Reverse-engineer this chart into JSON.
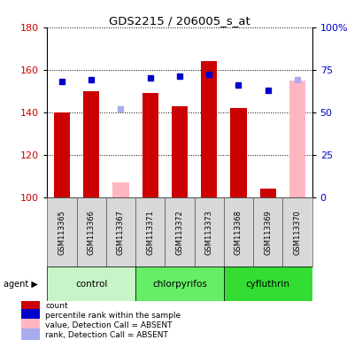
{
  "title": "GDS2215 / 206005_s_at",
  "samples": [
    "GSM113365",
    "GSM113366",
    "GSM113367",
    "GSM113371",
    "GSM113372",
    "GSM113373",
    "GSM113368",
    "GSM113369",
    "GSM113370"
  ],
  "groups": [
    {
      "label": "control",
      "indices": [
        0,
        1,
        2
      ]
    },
    {
      "label": "chlorpyrifos",
      "indices": [
        3,
        4,
        5
      ]
    },
    {
      "label": "cyfluthrin",
      "indices": [
        6,
        7,
        8
      ]
    }
  ],
  "group_colors": [
    "#c8f5c8",
    "#66ee66",
    "#33dd33"
  ],
  "bar_values": [
    140,
    150,
    null,
    149,
    143,
    164,
    142,
    104,
    null
  ],
  "bar_absent_values": [
    null,
    null,
    107,
    null,
    null,
    null,
    null,
    null,
    155
  ],
  "rank_values": [
    68,
    69,
    null,
    70,
    71,
    72,
    66,
    63,
    null
  ],
  "rank_absent_values": [
    null,
    null,
    52,
    null,
    null,
    null,
    null,
    null,
    69
  ],
  "bar_color": "#cc0000",
  "bar_absent_color": "#ffb6c1",
  "rank_color": "#0000cc",
  "rank_absent_color": "#aaaaee",
  "ylim_left": [
    100,
    180
  ],
  "ylim_right": [
    0,
    100
  ],
  "yticks_left": [
    100,
    120,
    140,
    160,
    180
  ],
  "yticks_right": [
    0,
    25,
    50,
    75,
    100
  ],
  "ytick_labels_right": [
    "0",
    "25",
    "50",
    "75",
    "100%"
  ],
  "bar_width": 0.55,
  "legend_labels": [
    "count",
    "percentile rank within the sample",
    "value, Detection Call = ABSENT",
    "rank, Detection Call = ABSENT"
  ],
  "legend_colors": [
    "#cc0000",
    "#0000cc",
    "#ffb6c1",
    "#aaaaee"
  ],
  "fig_width": 4.1,
  "fig_height": 3.84,
  "dpi": 100
}
